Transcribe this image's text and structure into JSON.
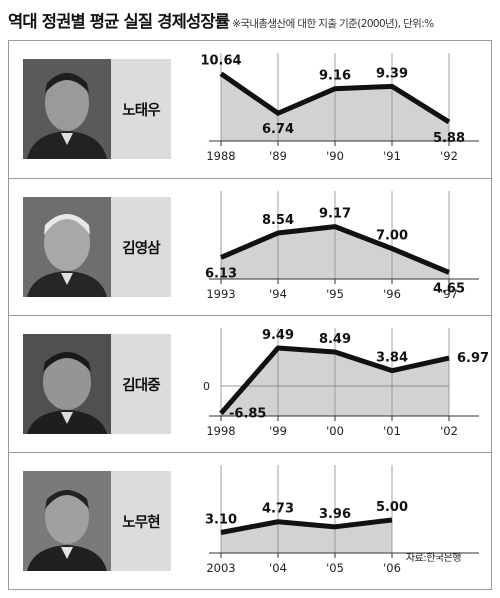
{
  "header": {
    "title": "역대 정권별 평균 실질 경제성장률",
    "subtitle": "※국내총생산에 대한 지출 기준(2000년), 단위:%"
  },
  "panels": [
    {
      "name": "노태우",
      "photo": "portrait-photo"
    },
    {
      "name": "김영삼",
      "photo": "portrait-photo"
    },
    {
      "name": "김대중",
      "photo": "portrait-photo"
    },
    {
      "name": "노무현",
      "photo": "portrait-photo"
    }
  ],
  "source": "자료:한국은행",
  "chart_data": [
    {
      "type": "area",
      "categories": [
        "1988",
        "'89",
        "'90",
        "'91",
        "'92"
      ],
      "values": [
        10.64,
        6.74,
        9.16,
        9.39,
        5.88
      ],
      "ylim": [
        4,
        11.5
      ],
      "label_pos": [
        "above",
        "below",
        "above",
        "above",
        "below"
      ]
    },
    {
      "type": "area",
      "categories": [
        "1993",
        "'94",
        "'95",
        "'96",
        "'97"
      ],
      "values": [
        6.13,
        8.54,
        9.17,
        7.0,
        4.65
      ],
      "ylim": [
        4,
        11.5
      ],
      "label_pos": [
        "below",
        "above",
        "above",
        "above",
        "below"
      ]
    },
    {
      "type": "area",
      "categories": [
        "1998",
        "'99",
        "'00",
        "'01",
        "'02"
      ],
      "values": [
        -6.85,
        9.49,
        8.49,
        3.84,
        6.97
      ],
      "ylim": [
        -7.5,
        11.5
      ],
      "zero_label": "0",
      "label_pos": [
        "right",
        "above",
        "above",
        "above",
        "right"
      ]
    },
    {
      "type": "area",
      "categories": [
        "2003",
        "'04",
        "'05",
        "'06"
      ],
      "values": [
        3.1,
        4.73,
        3.96,
        5.0
      ],
      "ylim": [
        0,
        11.5
      ],
      "label_pos": [
        "above",
        "above",
        "above",
        "above"
      ]
    }
  ]
}
